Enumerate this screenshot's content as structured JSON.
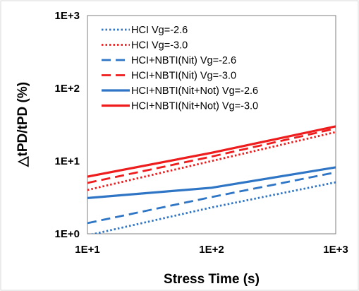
{
  "chart_data": {
    "type": "line",
    "xlabel": "Stress Time (s)",
    "ylabel": "△tPD/tPD (%)",
    "x_scale": "log",
    "y_scale": "log",
    "xlim": [
      10,
      1000
    ],
    "ylim": [
      1,
      1000
    ],
    "x_ticks": [
      "1E+1",
      "1E+2",
      "1E+3"
    ],
    "y_ticks": [
      "1E+0",
      "1E+1",
      "1E+2",
      "1E+3"
    ],
    "grid": false,
    "legend_position": "top-right",
    "series": [
      {
        "name": "HCI Vg=-2.6",
        "color": "#2E75C5",
        "style": "dotted",
        "x": [
          10,
          100,
          1000
        ],
        "y": [
          0.95,
          2.3,
          5.1
        ]
      },
      {
        "name": "HCI Vg=-3.0",
        "color": "#EE1C1C",
        "style": "dotted",
        "x": [
          10,
          100,
          1000
        ],
        "y": [
          4.0,
          10.0,
          25.0
        ]
      },
      {
        "name": "HCI+NBTI(Nit) Vg=-2.6",
        "color": "#2E75C5",
        "style": "dashed",
        "x": [
          10,
          100,
          1000
        ],
        "y": [
          1.4,
          3.2,
          7.0
        ]
      },
      {
        "name": "HCI+NBTI(Nit) Vg=-3.0",
        "color": "#EE1C1C",
        "style": "dashed",
        "x": [
          10,
          100,
          1000
        ],
        "y": [
          5.0,
          11.5,
          28.0
        ]
      },
      {
        "name": "HCI+NBTI(Nit+Not) Vg=-2.6",
        "color": "#2E75C5",
        "style": "solid",
        "x": [
          10,
          100,
          1000
        ],
        "y": [
          3.1,
          4.3,
          8.2
        ]
      },
      {
        "name": "HCI+NBTI(Nit+Not)  Vg=-3.0",
        "color": "#EE1C1C",
        "style": "solid",
        "x": [
          10,
          100,
          1000
        ],
        "y": [
          6.1,
          13.0,
          30.0
        ]
      }
    ]
  }
}
